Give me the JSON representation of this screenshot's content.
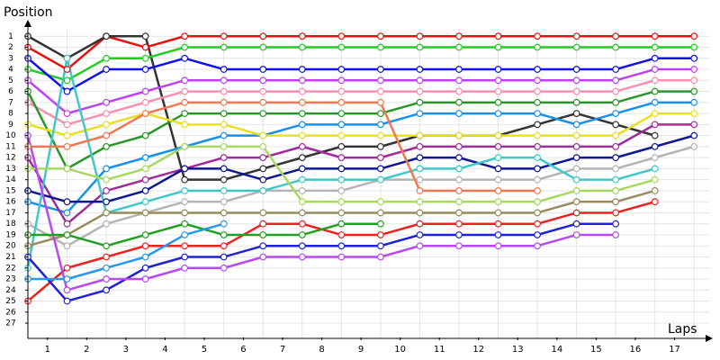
{
  "chart_data": {
    "type": "line",
    "y_label": "Position",
    "x_label": "Laps",
    "x": [
      0,
      1,
      2,
      3,
      4,
      5,
      6,
      7,
      8,
      9,
      10,
      11,
      12,
      13,
      14,
      15,
      16,
      17
    ],
    "xlim": [
      0,
      17.5
    ],
    "xticks": [
      {
        "value": 0.5,
        "label": "1"
      },
      {
        "value": 1.5,
        "label": "2"
      },
      {
        "value": 2.5,
        "label": "3"
      },
      {
        "value": 3.5,
        "label": "4"
      },
      {
        "value": 4.5,
        "label": "5"
      },
      {
        "value": 5.5,
        "label": "6"
      },
      {
        "value": 6.5,
        "label": "7"
      },
      {
        "value": 7.5,
        "label": "8"
      },
      {
        "value": 8.5,
        "label": "9"
      },
      {
        "value": 9.5,
        "label": "10"
      },
      {
        "value": 10.5,
        "label": "11"
      },
      {
        "value": 11.5,
        "label": "12"
      },
      {
        "value": 12.5,
        "label": "13"
      },
      {
        "value": 13.5,
        "label": "14"
      },
      {
        "value": 14.5,
        "label": "15"
      },
      {
        "value": 15.5,
        "label": "16"
      },
      {
        "value": 16.5,
        "label": "17"
      }
    ],
    "ylim": [
      28.3,
      0
    ],
    "yticks": [
      1,
      2,
      3,
      4,
      5,
      6,
      7,
      8,
      9,
      10,
      11,
      12,
      13,
      14,
      15,
      16,
      17,
      18,
      19,
      20,
      21,
      22,
      23,
      24,
      25,
      26,
      27
    ],
    "grid": true,
    "series": [
      {
        "color": "#e81010",
        "values": [
          2,
          4,
          1,
          2,
          1,
          1,
          1,
          1,
          1,
          1,
          1,
          1,
          1,
          1,
          1,
          1,
          1,
          1
        ]
      },
      {
        "color": "#333333",
        "values": [
          1,
          3,
          1,
          1,
          14,
          14,
          13,
          12,
          11,
          11,
          10,
          10,
          10,
          9,
          8,
          9,
          10,
          null
        ]
      },
      {
        "color": "#22cc22",
        "values": [
          4,
          5,
          3,
          3,
          2,
          2,
          2,
          2,
          2,
          2,
          2,
          2,
          2,
          2,
          2,
          2,
          2,
          2
        ]
      },
      {
        "color": "#1010ee",
        "values": [
          3,
          6,
          4,
          4,
          3,
          4,
          4,
          4,
          4,
          4,
          4,
          4,
          4,
          4,
          4,
          4,
          3,
          3
        ]
      },
      {
        "color": "#c040f0",
        "values": [
          5,
          8,
          7,
          6,
          5,
          5,
          5,
          5,
          5,
          5,
          5,
          5,
          5,
          5,
          5,
          5,
          4,
          4
        ]
      },
      {
        "color": "#f890b0",
        "values": [
          7,
          9,
          8,
          7,
          6,
          6,
          6,
          6,
          6,
          6,
          6,
          6,
          6,
          6,
          6,
          6,
          5,
          5
        ]
      },
      {
        "color": "#2a962a",
        "values": [
          6,
          13,
          11,
          10,
          8,
          8,
          8,
          8,
          8,
          8,
          7,
          7,
          7,
          7,
          7,
          7,
          6,
          6
        ]
      },
      {
        "color": "#1890e8",
        "values": [
          16,
          17,
          13,
          12,
          11,
          10,
          10,
          9,
          9,
          9,
          8,
          8,
          8,
          8,
          9,
          8,
          7,
          7
        ]
      },
      {
        "color": "#e8e020",
        "values": [
          9,
          10,
          9,
          8,
          9,
          9,
          10,
          10,
          10,
          10,
          10,
          10,
          10,
          10,
          10,
          10,
          8,
          8
        ]
      },
      {
        "color": "#a02c9c",
        "values": [
          12,
          18,
          15,
          14,
          13,
          12,
          12,
          11,
          12,
          12,
          11,
          11,
          11,
          11,
          11,
          11,
          9,
          9
        ]
      },
      {
        "color": "#101890",
        "values": [
          15,
          16,
          16,
          15,
          13,
          13,
          14,
          13,
          13,
          13,
          12,
          12,
          13,
          13,
          12,
          12,
          11,
          10
        ]
      },
      {
        "color": "#b4b4b4",
        "values": [
          18,
          20,
          18,
          17,
          16,
          16,
          15,
          15,
          15,
          14,
          14,
          14,
          14,
          14,
          13,
          13,
          12,
          11
        ]
      },
      {
        "color": "#40c8c8",
        "values": [
          22,
          3,
          17,
          16,
          15,
          15,
          15,
          14,
          14,
          14,
          13,
          13,
          12,
          12,
          14,
          14,
          13,
          null
        ]
      },
      {
        "color": "#a8d860",
        "values": [
          13,
          13,
          14,
          13,
          11,
          11,
          11,
          16,
          16,
          16,
          16,
          16,
          16,
          16,
          15,
          15,
          14,
          null
        ]
      },
      {
        "color": "#988c5c",
        "values": [
          20,
          19,
          17,
          17,
          17,
          17,
          17,
          17,
          17,
          17,
          17,
          17,
          17,
          17,
          16,
          16,
          15,
          null
        ]
      },
      {
        "color": "#f07850",
        "values": [
          11,
          11,
          10,
          8,
          7,
          7,
          7,
          7,
          7,
          7,
          15,
          15,
          15,
          15,
          null,
          null,
          null,
          null
        ]
      },
      {
        "color": "#f02020",
        "values": [
          25,
          22,
          21,
          20,
          20,
          20,
          18,
          18,
          19,
          19,
          18,
          18,
          18,
          18,
          17,
          17,
          16,
          null
        ]
      },
      {
        "color": "#2020d8",
        "values": [
          21,
          25,
          24,
          22,
          21,
          21,
          20,
          20,
          20,
          20,
          19,
          19,
          19,
          19,
          18,
          18,
          null,
          null
        ]
      },
      {
        "color": "#b848f0",
        "values": [
          10,
          24,
          23,
          23,
          22,
          22,
          21,
          21,
          21,
          21,
          20,
          20,
          20,
          20,
          19,
          19,
          null,
          null
        ]
      },
      {
        "color": "#20a020",
        "values": [
          19,
          19,
          20,
          19,
          18,
          19,
          19,
          19,
          18,
          18,
          null,
          null,
          null,
          null,
          null,
          null,
          null,
          null
        ]
      },
      {
        "color": "#2898e8",
        "values": [
          23,
          23,
          22,
          21,
          19,
          18,
          null,
          null,
          null,
          null,
          null,
          null,
          null,
          null,
          null,
          null,
          null,
          null
        ]
      }
    ]
  }
}
